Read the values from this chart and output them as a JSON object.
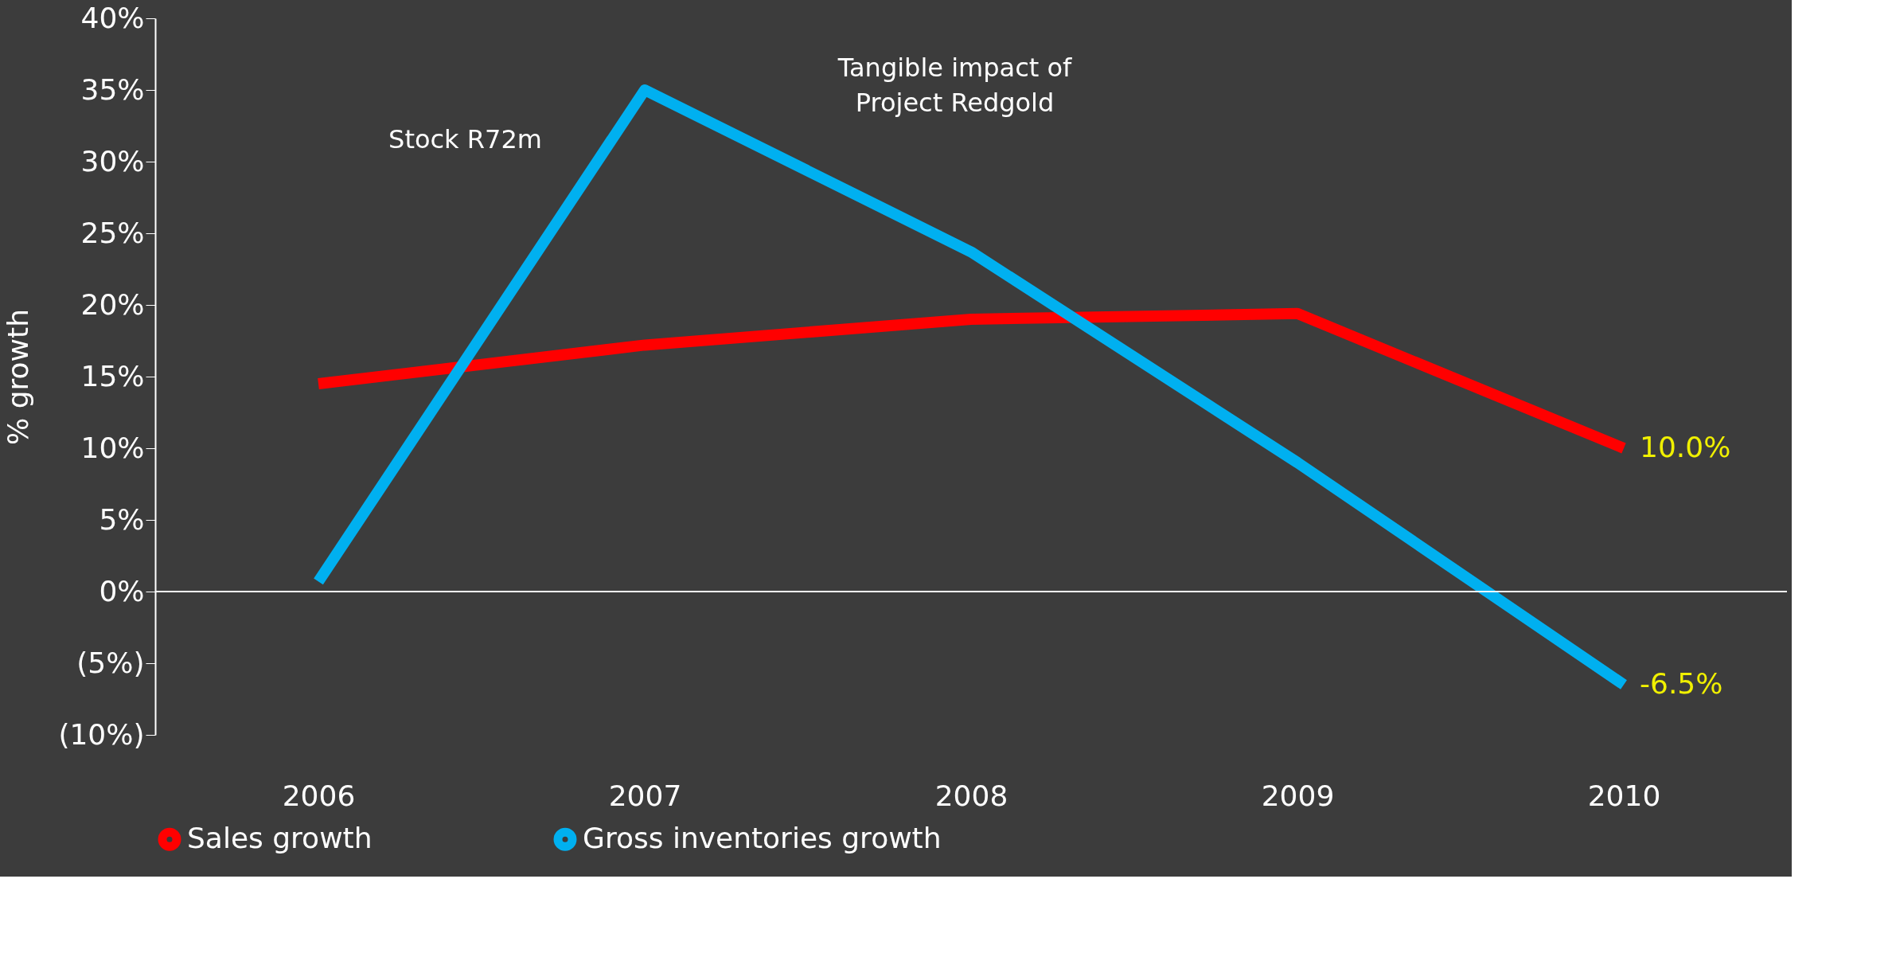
{
  "chart_data": {
    "type": "line",
    "ylabel": "% growth",
    "categories": [
      "2006",
      "2007",
      "2008",
      "2009",
      "2010"
    ],
    "series": [
      {
        "name": "Sales growth",
        "color": "#ff0000",
        "values": [
          14.5,
          17.2,
          19.0,
          19.4,
          10.0
        ],
        "value_labels": [
          null,
          null,
          null,
          null,
          "10.0%"
        ]
      },
      {
        "name": "Gross inventories growth",
        "color": "#00b0f0",
        "values": [
          0.7,
          35.0,
          23.7,
          9.0,
          -6.5
        ],
        "value_labels": [
          null,
          null,
          null,
          null,
          "-6.5%"
        ]
      }
    ],
    "ylim": [
      -10,
      40
    ],
    "yticks": [
      {
        "value": -10,
        "label": "(10%)"
      },
      {
        "value": -5,
        "label": "(5%)"
      },
      {
        "value": 0,
        "label": "0%"
      },
      {
        "value": 5,
        "label": "5%"
      },
      {
        "value": 10,
        "label": "10%"
      },
      {
        "value": 15,
        "label": "15%"
      },
      {
        "value": 20,
        "label": "20%"
      },
      {
        "value": 25,
        "label": "25%"
      },
      {
        "value": 30,
        "label": "30%"
      },
      {
        "value": 35,
        "label": "35%"
      },
      {
        "value": 40,
        "label": "40%"
      }
    ],
    "annotations": [
      "Stock R72m",
      "Tangible impact of\nProject Redgold"
    ],
    "ref_lines": [
      {
        "axis": "y",
        "value": 0,
        "color": "#ffffff"
      }
    ],
    "legend": "bottom",
    "grid": false,
    "marker": "none",
    "line_style": "solid"
  }
}
